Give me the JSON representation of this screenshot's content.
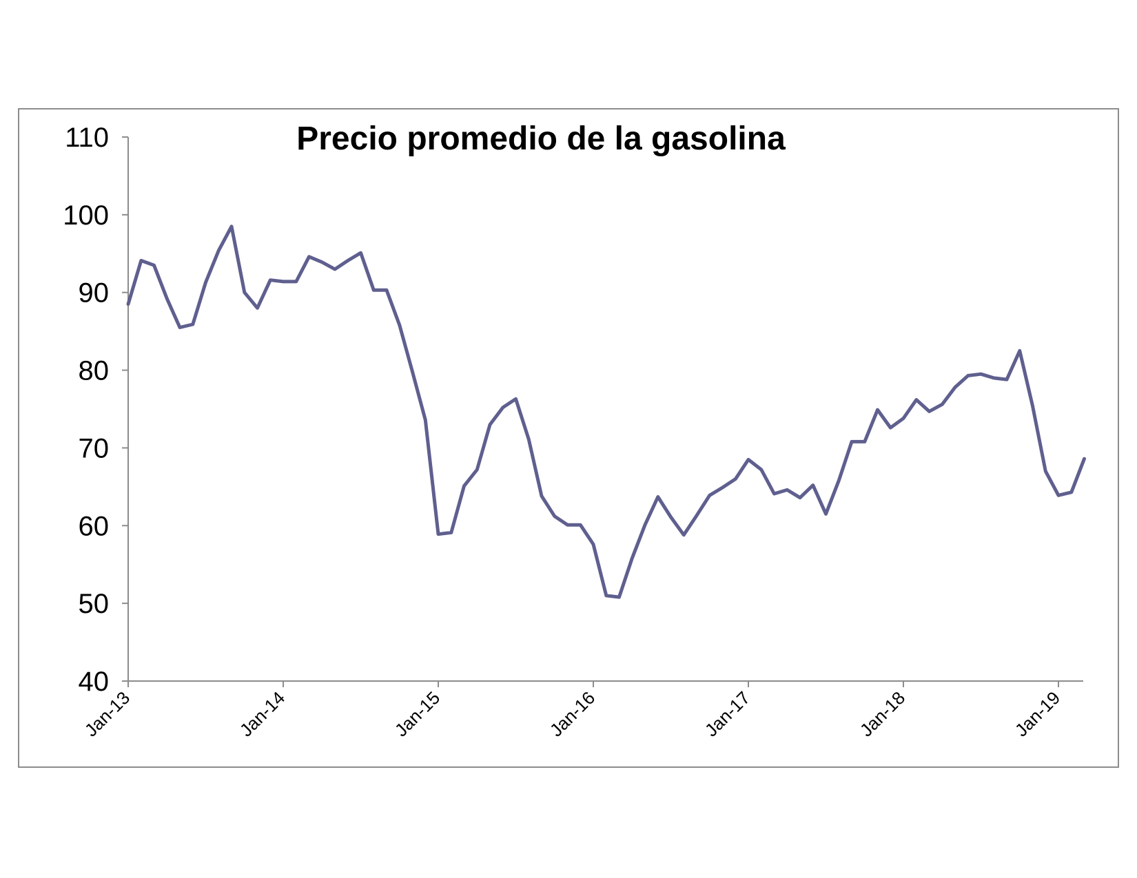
{
  "chart_data": {
    "type": "line",
    "title": "Precio promedio de la gasolina",
    "xlabel": "",
    "ylabel": "",
    "ylim": [
      40,
      110
    ],
    "yticks": [
      40,
      50,
      60,
      70,
      80,
      90,
      100,
      110
    ],
    "xticks": [
      "Jan-13",
      "Jan-14",
      "Jan-15",
      "Jan-16",
      "Jan-17",
      "Jan-18",
      "Jan-19"
    ],
    "x_start": "Jan-13",
    "x_end": "Mar-19",
    "grid": false,
    "legend": "none",
    "series": [
      {
        "color": "#5f5f8f",
        "x": [
          "Jan-13",
          "Feb-13",
          "Mar-13",
          "Apr-13",
          "May-13",
          "Jun-13",
          "Jul-13",
          "Aug-13",
          "Sep-13",
          "Oct-13",
          "Nov-13",
          "Dec-13",
          "Jan-14",
          "Feb-14",
          "Mar-14",
          "Apr-14",
          "May-14",
          "Jun-14",
          "Jul-14",
          "Aug-14",
          "Sep-14",
          "Oct-14",
          "Nov-14",
          "Dec-14",
          "Jan-15",
          "Feb-15",
          "Mar-15",
          "Apr-15",
          "May-15",
          "Jun-15",
          "Jul-15",
          "Aug-15",
          "Sep-15",
          "Oct-15",
          "Nov-15",
          "Dec-15",
          "Jan-16",
          "Feb-16",
          "Mar-16",
          "Apr-16",
          "May-16",
          "Jun-16",
          "Jul-16",
          "Aug-16",
          "Sep-16",
          "Oct-16",
          "Nov-16",
          "Dec-16",
          "Jan-17",
          "Feb-17",
          "Mar-17",
          "Apr-17",
          "May-17",
          "Jun-17",
          "Jul-17",
          "Aug-17",
          "Sep-17",
          "Oct-17",
          "Nov-17",
          "Dec-17",
          "Jan-18",
          "Feb-18",
          "Mar-18",
          "Apr-18",
          "May-18",
          "Jun-18",
          "Jul-18",
          "Aug-18",
          "Sep-18",
          "Oct-18",
          "Nov-18",
          "Dec-18",
          "Jan-19",
          "Feb-19",
          "Mar-19"
        ],
        "values": [
          88.5,
          94.1,
          93.5,
          89.2,
          85.5,
          85.9,
          91.3,
          95.4,
          98.5,
          90.0,
          88.0,
          91.6,
          91.4,
          91.4,
          94.6,
          93.9,
          93.0,
          94.1,
          95.1,
          90.3,
          90.3,
          85.8,
          79.8,
          73.6,
          58.9,
          59.1,
          65.1,
          67.2,
          73.0,
          75.2,
          76.3,
          71.1,
          63.8,
          61.2,
          60.1,
          60.1,
          57.6,
          51.0,
          50.8,
          55.8,
          60.1,
          63.7,
          61.1,
          58.8,
          61.3,
          63.9,
          64.9,
          66.0,
          68.5,
          67.2,
          64.1,
          64.6,
          63.6,
          65.2,
          61.5,
          65.8,
          70.8,
          70.8,
          74.9,
          72.6,
          73.8,
          76.2,
          74.7,
          75.6,
          77.8,
          79.3,
          79.5,
          79.0,
          78.8,
          82.5,
          75.4,
          67.0,
          63.9,
          64.3,
          68.6
        ]
      }
    ]
  }
}
